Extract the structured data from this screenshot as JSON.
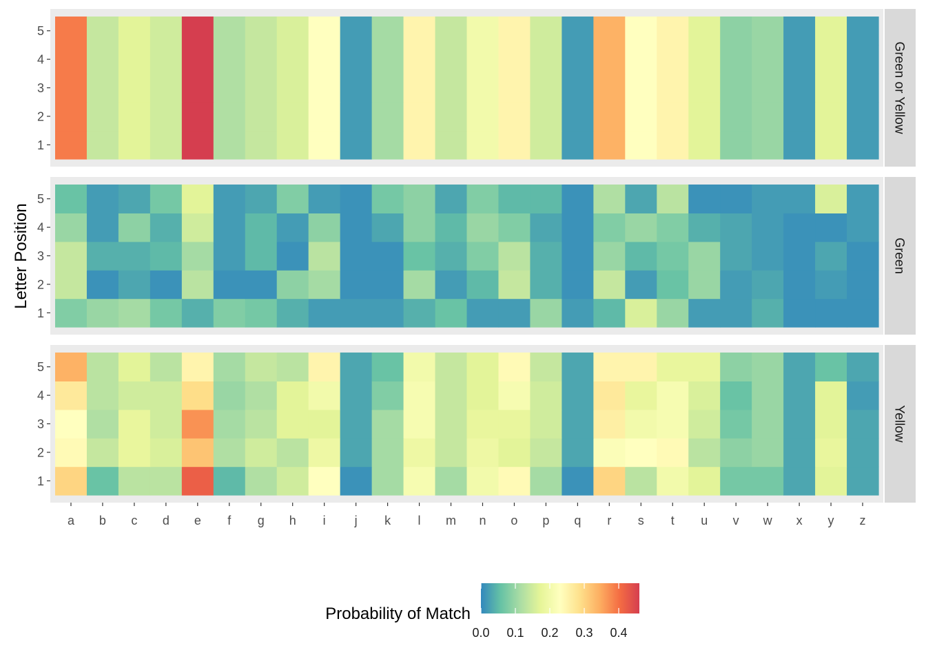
{
  "chart_data": {
    "type": "heatmap",
    "ylabel": "Letter Position",
    "legend_title": "Probability of Match",
    "legend_position": "bottom",
    "legend_ticks": [
      "0.0",
      "0.1",
      "0.2",
      "0.3",
      "0.4"
    ],
    "value_range": [
      0,
      0.46
    ],
    "color_scale": [
      "#3288bd",
      "#66c2a5",
      "#abdda4",
      "#e6f598",
      "#ffffbf",
      "#fee08b",
      "#fdae61",
      "#f46d43",
      "#d53e4f"
    ],
    "x_categories": [
      "a",
      "b",
      "c",
      "d",
      "e",
      "f",
      "g",
      "h",
      "i",
      "j",
      "k",
      "l",
      "m",
      "n",
      "o",
      "p",
      "q",
      "r",
      "s",
      "t",
      "u",
      "v",
      "w",
      "x",
      "y",
      "z"
    ],
    "y_categories": [
      "1",
      "2",
      "3",
      "4",
      "5"
    ],
    "panels": [
      {
        "label": "Green or Yellow",
        "values": [
          [
            0.39,
            0.14,
            0.17,
            0.15,
            0.46,
            0.12,
            0.14,
            0.16,
            0.23,
            0.02,
            0.11,
            0.25,
            0.14,
            0.2,
            0.25,
            0.15,
            0.02,
            0.34,
            0.23,
            0.25,
            0.17,
            0.09,
            0.1,
            0.02,
            0.17,
            0.02
          ],
          [
            0.39,
            0.14,
            0.17,
            0.15,
            0.46,
            0.12,
            0.14,
            0.16,
            0.23,
            0.02,
            0.11,
            0.25,
            0.14,
            0.2,
            0.25,
            0.15,
            0.02,
            0.34,
            0.23,
            0.25,
            0.17,
            0.09,
            0.1,
            0.02,
            0.17,
            0.02
          ],
          [
            0.39,
            0.14,
            0.17,
            0.15,
            0.46,
            0.12,
            0.14,
            0.16,
            0.23,
            0.02,
            0.11,
            0.25,
            0.14,
            0.2,
            0.25,
            0.15,
            0.02,
            0.34,
            0.23,
            0.25,
            0.17,
            0.09,
            0.1,
            0.02,
            0.17,
            0.02
          ],
          [
            0.39,
            0.14,
            0.17,
            0.15,
            0.46,
            0.12,
            0.14,
            0.16,
            0.23,
            0.02,
            0.11,
            0.25,
            0.14,
            0.2,
            0.25,
            0.15,
            0.02,
            0.34,
            0.23,
            0.25,
            0.17,
            0.09,
            0.1,
            0.02,
            0.17,
            0.02
          ],
          [
            0.39,
            0.14,
            0.17,
            0.15,
            0.46,
            0.12,
            0.14,
            0.16,
            0.23,
            0.02,
            0.11,
            0.25,
            0.14,
            0.2,
            0.25,
            0.15,
            0.02,
            0.34,
            0.23,
            0.25,
            0.17,
            0.09,
            0.1,
            0.02,
            0.17,
            0.02
          ]
        ]
      },
      {
        "label": "Green",
        "values": [
          [
            0.08,
            0.1,
            0.11,
            0.07,
            0.04,
            0.08,
            0.07,
            0.04,
            0.02,
            0.02,
            0.02,
            0.04,
            0.06,
            0.02,
            0.02,
            0.1,
            0.02,
            0.05,
            0.16,
            0.1,
            0.02,
            0.02,
            0.04,
            0.01,
            0.01,
            0.01
          ],
          [
            0.14,
            0.01,
            0.03,
            0.01,
            0.13,
            0.01,
            0.01,
            0.09,
            0.11,
            0.01,
            0.01,
            0.11,
            0.02,
            0.05,
            0.14,
            0.04,
            0.01,
            0.14,
            0.02,
            0.06,
            0.1,
            0.02,
            0.03,
            0.01,
            0.02,
            0.01
          ],
          [
            0.14,
            0.04,
            0.04,
            0.05,
            0.11,
            0.02,
            0.05,
            0.01,
            0.13,
            0.01,
            0.01,
            0.06,
            0.04,
            0.08,
            0.13,
            0.04,
            0.01,
            0.1,
            0.05,
            0.07,
            0.1,
            0.03,
            0.02,
            0.01,
            0.03,
            0.01
          ],
          [
            0.1,
            0.02,
            0.09,
            0.04,
            0.15,
            0.02,
            0.05,
            0.02,
            0.09,
            0.01,
            0.03,
            0.09,
            0.05,
            0.1,
            0.08,
            0.03,
            0.01,
            0.08,
            0.1,
            0.08,
            0.04,
            0.03,
            0.02,
            0.01,
            0.01,
            0.02
          ],
          [
            0.06,
            0.02,
            0.03,
            0.07,
            0.17,
            0.02,
            0.03,
            0.08,
            0.02,
            0.01,
            0.07,
            0.09,
            0.03,
            0.08,
            0.05,
            0.05,
            0.01,
            0.12,
            0.03,
            0.13,
            0.01,
            0.01,
            0.02,
            0.02,
            0.16,
            0.02
          ]
        ]
      },
      {
        "label": "Yellow",
        "values": [
          [
            0.3,
            0.06,
            0.13,
            0.13,
            0.42,
            0.05,
            0.12,
            0.15,
            0.23,
            0.01,
            0.11,
            0.21,
            0.11,
            0.2,
            0.24,
            0.11,
            0.01,
            0.3,
            0.13,
            0.2,
            0.17,
            0.07,
            0.07,
            0.03,
            0.17,
            0.03
          ],
          [
            0.24,
            0.14,
            0.18,
            0.16,
            0.32,
            0.12,
            0.15,
            0.13,
            0.19,
            0.03,
            0.11,
            0.19,
            0.14,
            0.19,
            0.17,
            0.14,
            0.03,
            0.22,
            0.23,
            0.24,
            0.13,
            0.09,
            0.1,
            0.03,
            0.18,
            0.03
          ],
          [
            0.23,
            0.12,
            0.18,
            0.15,
            0.37,
            0.11,
            0.13,
            0.17,
            0.17,
            0.03,
            0.11,
            0.21,
            0.14,
            0.18,
            0.18,
            0.15,
            0.03,
            0.26,
            0.2,
            0.21,
            0.15,
            0.07,
            0.1,
            0.03,
            0.17,
            0.03
          ],
          [
            0.27,
            0.13,
            0.15,
            0.15,
            0.29,
            0.1,
            0.12,
            0.17,
            0.2,
            0.03,
            0.08,
            0.21,
            0.14,
            0.17,
            0.21,
            0.15,
            0.03,
            0.27,
            0.18,
            0.21,
            0.16,
            0.06,
            0.1,
            0.03,
            0.17,
            0.02
          ],
          [
            0.34,
            0.13,
            0.17,
            0.13,
            0.25,
            0.11,
            0.14,
            0.13,
            0.25,
            0.03,
            0.06,
            0.2,
            0.14,
            0.17,
            0.24,
            0.14,
            0.03,
            0.25,
            0.25,
            0.18,
            0.18,
            0.09,
            0.1,
            0.03,
            0.06,
            0.03
          ]
        ]
      }
    ]
  }
}
